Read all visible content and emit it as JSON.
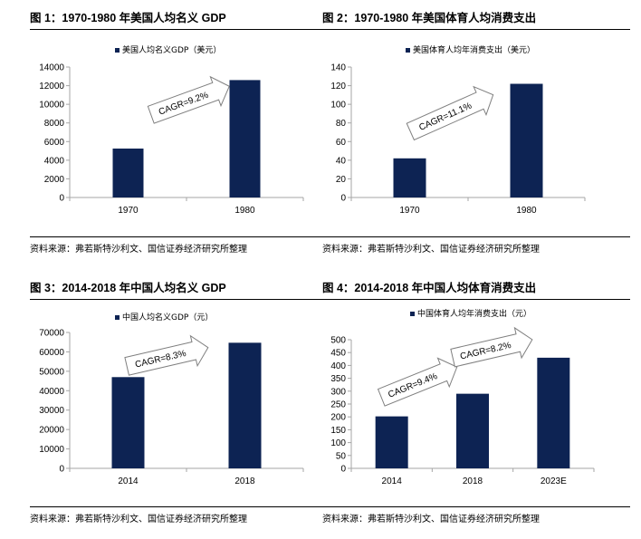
{
  "source_text": "资料来源：弗若斯特沙利文、国信证券经济研究所整理",
  "colors": {
    "bar": "#0d2353",
    "axis": "#a6a6a6",
    "arrow_stroke": "#7f7f7f"
  },
  "chart_data": [
    {
      "type": "bar",
      "title": "图 1：1970-1980 年美国人均名义 GDP",
      "legend": "美国人均名义GDP（美元）",
      "categories": [
        "1970",
        "1980"
      ],
      "values": [
        5250,
        12600
      ],
      "ylim": [
        0,
        14000
      ],
      "yticks": [
        0,
        2000,
        4000,
        6000,
        8000,
        10000,
        12000,
        14000
      ],
      "annotations": [
        {
          "text": "CAGR=9.2%"
        }
      ]
    },
    {
      "type": "bar",
      "title": "图 2：1970-1980 年美国体育人均消费支出",
      "legend": "美国体育人均年消费支出（美元）",
      "categories": [
        "1970",
        "1980"
      ],
      "values": [
        42,
        122
      ],
      "ylim": [
        0,
        140
      ],
      "yticks": [
        0,
        20,
        40,
        60,
        80,
        100,
        120,
        140
      ],
      "annotations": [
        {
          "text": "CAGR=11.1%"
        }
      ]
    },
    {
      "type": "bar",
      "title": "图 3：2014-2018 年中国人均名义 GDP",
      "legend": "中国人均名义GDP（元）",
      "categories": [
        "2014",
        "2018"
      ],
      "values": [
        47000,
        64700
      ],
      "ylim": [
        0,
        70000
      ],
      "yticks": [
        0,
        10000,
        20000,
        30000,
        40000,
        50000,
        60000,
        70000
      ],
      "annotations": [
        {
          "text": "CAGR=8.3%"
        }
      ]
    },
    {
      "type": "bar",
      "title": "图 4：2014-2018 年中国人均体育消费支出",
      "legend": "中国体育人均年消费支出（元）",
      "categories": [
        "2014",
        "2018",
        "2023E"
      ],
      "values": [
        202,
        290,
        430
      ],
      "ylim": [
        0,
        500
      ],
      "yticks": [
        0,
        50,
        100,
        150,
        200,
        250,
        300,
        350,
        400,
        450,
        500
      ],
      "annotations": [
        {
          "text": "CAGR=9.4%"
        },
        {
          "text": "CAGR=8.2%"
        }
      ]
    }
  ]
}
